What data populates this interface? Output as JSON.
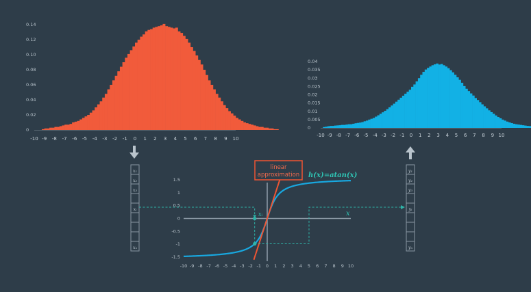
{
  "colors": {
    "background": "#2e3d49",
    "input_hist": "#f15b3b",
    "output_hist": "#12b1e5",
    "curve": "#18a8e0",
    "tangent": "#ee5533",
    "dashed": "#2fb3a8",
    "axes": "#8a98a4",
    "vector_box": "#8a98a4",
    "annotation_box": "#ee5533"
  },
  "arrows": {
    "down": "arrow-down-icon",
    "up": "arrow-up-icon"
  },
  "input_vector": {
    "labels": [
      "x1",
      "x2",
      "x3",
      "",
      "xi",
      "",
      "",
      "",
      "xn"
    ],
    "display": [
      "x₁",
      "x₂",
      "x₃",
      "",
      "xᵢ",
      "",
      "",
      "",
      "xₙ"
    ]
  },
  "output_vector": {
    "labels": [
      "y1",
      "y2",
      "y3",
      "",
      "yi",
      "",
      "",
      "",
      "yn"
    ],
    "display": [
      "y₁",
      "y₂",
      "y₃",
      "",
      "yᵢ",
      "",
      "",
      "",
      "yₙ"
    ]
  },
  "annotation": {
    "line1": "linear",
    "line2": "approximation"
  },
  "function_label": "h(x)=atan(x)",
  "x_axis_label": "x",
  "point_label": "xᵢ",
  "chart_data": [
    {
      "type": "bar",
      "id": "input-histogram",
      "xlim": [
        -10,
        10
      ],
      "ylim": [
        0,
        0.14
      ],
      "xticks": [
        -10,
        -9,
        -8,
        -7,
        -6,
        -5,
        -4,
        -3,
        -2,
        -1,
        0,
        1,
        2,
        3,
        4,
        5,
        6,
        7,
        8,
        9,
        10
      ],
      "yticks": [
        "0",
        "0.02",
        "0.04",
        "0.06",
        "0.08",
        "0.10",
        "0.12",
        "0.14"
      ],
      "ytick_values": [
        0,
        0.02,
        0.04,
        0.06,
        0.08,
        0.1,
        0.12,
        0.14
      ],
      "bin_start": -10,
      "bin_width": 0.25,
      "values": [
        0,
        0,
        0,
        0.001,
        0.002,
        0.002,
        0.003,
        0.003,
        0.004,
        0.004,
        0.005,
        0.006,
        0.007,
        0.007,
        0.008,
        0.01,
        0.011,
        0.012,
        0.014,
        0.016,
        0.018,
        0.02,
        0.023,
        0.026,
        0.03,
        0.034,
        0.038,
        0.043,
        0.048,
        0.054,
        0.06,
        0.066,
        0.072,
        0.078,
        0.084,
        0.09,
        0.096,
        0.101,
        0.106,
        0.111,
        0.116,
        0.12,
        0.124,
        0.127,
        0.131,
        0.133,
        0.134,
        0.136,
        0.137,
        0.138,
        0.139,
        0.141,
        0.138,
        0.137,
        0.136,
        0.135,
        0.136,
        0.131,
        0.129,
        0.125,
        0.121,
        0.116,
        0.11,
        0.105,
        0.099,
        0.093,
        0.087,
        0.08,
        0.073,
        0.066,
        0.06,
        0.054,
        0.048,
        0.043,
        0.038,
        0.033,
        0.029,
        0.025,
        0.022,
        0.019,
        0.016,
        0.014,
        0.012,
        0.01,
        0.009,
        0.008,
        0.007,
        0.006,
        0.005,
        0.004,
        0.004,
        0.003,
        0.003,
        0.002,
        0.002,
        0.001,
        0.001,
        0,
        0,
        0,
        0
      ]
    },
    {
      "type": "bar",
      "id": "output-histogram",
      "xlim": [
        -10,
        10
      ],
      "ylim": [
        0,
        0.04
      ],
      "xticks": [
        -10,
        -9,
        -8,
        -7,
        -6,
        -5,
        -4,
        -3,
        -2,
        -1,
        0,
        1,
        2,
        3,
        4,
        5,
        6,
        7,
        8,
        9,
        10
      ],
      "yticks": [
        "0",
        "0.005",
        "0.01",
        "0.015",
        "0.02",
        "0.025",
        "0.03",
        "0.035",
        "0.04"
      ],
      "ytick_values": [
        0,
        0.005,
        0.01,
        0.015,
        0.02,
        0.025,
        0.03,
        0.035,
        0.04
      ],
      "bin_start": -10,
      "bin_width": 0.25,
      "values": [
        0,
        0.0005,
        0.0007,
        0.001,
        0.0012,
        0.0012,
        0.0014,
        0.0015,
        0.0016,
        0.0018,
        0.0018,
        0.002,
        0.0022,
        0.0022,
        0.0025,
        0.0028,
        0.003,
        0.0032,
        0.0035,
        0.004,
        0.0044,
        0.005,
        0.0055,
        0.006,
        0.0068,
        0.0076,
        0.0085,
        0.0094,
        0.0103,
        0.0113,
        0.0124,
        0.0135,
        0.0146,
        0.0158,
        0.017,
        0.0182,
        0.0194,
        0.0206,
        0.0218,
        0.023,
        0.0248,
        0.0262,
        0.028,
        0.03,
        0.032,
        0.0338,
        0.0352,
        0.0362,
        0.037,
        0.0378,
        0.0383,
        0.0388,
        0.0382,
        0.0385,
        0.0378,
        0.037,
        0.036,
        0.0348,
        0.0335,
        0.032,
        0.0305,
        0.029,
        0.0272,
        0.0252,
        0.0236,
        0.0222,
        0.0208,
        0.0195,
        0.018,
        0.0168,
        0.0155,
        0.0142,
        0.013,
        0.0118,
        0.0106,
        0.0095,
        0.0085,
        0.0075,
        0.0066,
        0.0058,
        0.005,
        0.0044,
        0.0038,
        0.0033,
        0.0029,
        0.0025,
        0.0022,
        0.002,
        0.0018,
        0.0016,
        0.0014,
        0.0012,
        0.0011,
        0.001,
        0.0009,
        0.0008,
        0.0007,
        0.0006,
        0.0005,
        0.0004,
        0
      ]
    },
    {
      "type": "line",
      "id": "atan-plot",
      "xlim": [
        -10,
        10
      ],
      "ylim": [
        -1.5,
        1.5
      ],
      "xticks": [
        -10,
        -9,
        -8,
        -7,
        -6,
        -5,
        -4,
        -3,
        -2,
        -1,
        0,
        1,
        2,
        3,
        4,
        5,
        6,
        7,
        8,
        9,
        10
      ],
      "yticks": [
        "-1.5",
        "-1",
        "-0.5",
        "0",
        "0.5",
        "1",
        "1.5"
      ],
      "ytick_values": [
        -1.5,
        -1,
        -0.5,
        0,
        0.5,
        1,
        1.5
      ],
      "function": "atan",
      "x_range": [
        -10,
        10
      ],
      "tangent": {
        "slope": 1,
        "intercept": 0,
        "x_range": [
          -1.6,
          1.6
        ]
      },
      "x_i": -1.5,
      "dashed_right_x": 5
    }
  ]
}
